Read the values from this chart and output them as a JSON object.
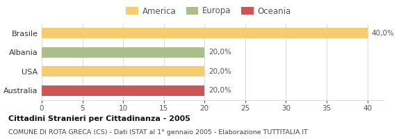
{
  "categories": [
    "Brasile",
    "Albania",
    "USA",
    "Australia"
  ],
  "values": [
    40.0,
    20.0,
    20.0,
    20.0
  ],
  "colors": [
    "#F5CC6E",
    "#ABBE8A",
    "#F5CC6E",
    "#CC5555"
  ],
  "labels": [
    "40,0%",
    "20,0%",
    "20,0%",
    "20,0%"
  ],
  "legend": [
    {
      "label": "America",
      "color": "#F5CC6E"
    },
    {
      "label": "Europa",
      "color": "#ABBE8A"
    },
    {
      "label": "Oceania",
      "color": "#CC5555"
    }
  ],
  "xlim": [
    0,
    42
  ],
  "xticks": [
    0,
    5,
    10,
    15,
    20,
    25,
    30,
    35,
    40
  ],
  "title": "Cittadini Stranieri per Cittadinanza - 2005",
  "subtitle": "COMUNE DI ROTA GRECA (CS) - Dati ISTAT al 1° gennaio 2005 - Elaborazione TUTTITALIA.IT",
  "bg_color": "#ffffff",
  "grid_color": "#dddddd",
  "bar_height": 0.55
}
